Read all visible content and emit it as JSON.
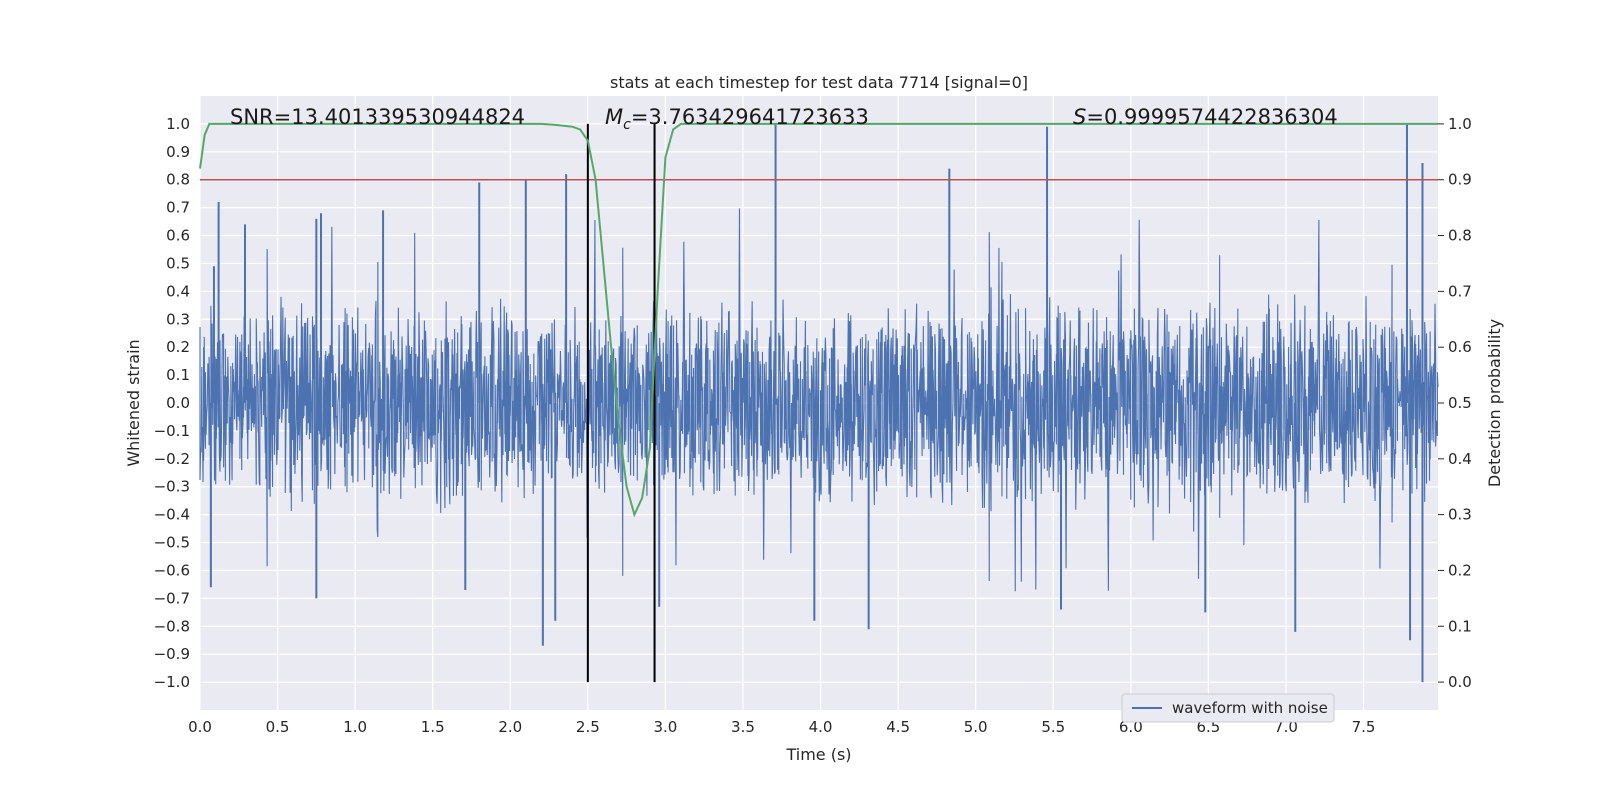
{
  "chart_data": {
    "type": "line",
    "title": "stats at each timestep for test data 7714 [signal=0]",
    "xlabel": "Time (s)",
    "ylabel_left": "Whitened strain",
    "ylabel_right": "Detection probability",
    "xlim": [
      0.0,
      7.98
    ],
    "ylim_left": [
      -1.1,
      1.1
    ],
    "ylim_right": [
      -0.05,
      1.05
    ],
    "x_ticks": [
      0.0,
      0.5,
      1.0,
      1.5,
      2.0,
      2.5,
      3.0,
      3.5,
      4.0,
      4.5,
      5.0,
      5.5,
      6.0,
      6.5,
      7.0,
      7.5
    ],
    "x_tick_labels": [
      "0.0",
      "0.5",
      "1.0",
      "1.5",
      "2.0",
      "2.5",
      "3.0",
      "3.5",
      "4.0",
      "4.5",
      "5.0",
      "5.5",
      "6.0",
      "6.5",
      "7.0",
      "7.5"
    ],
    "y_left_ticks": [
      1.0,
      0.9,
      0.8,
      0.7,
      0.6,
      0.5,
      0.4,
      0.3,
      0.2,
      0.1,
      0.0,
      -0.1,
      -0.2,
      -0.3,
      -0.4,
      -0.5,
      -0.6,
      -0.7,
      -0.8,
      -0.9,
      -1.0
    ],
    "y_left_tick_labels": [
      "1.0",
      "0.9",
      "0.8",
      "0.7",
      "0.6",
      "0.5",
      "0.4",
      "0.3",
      "0.2",
      "0.1",
      "0.0",
      "−0.1",
      "−0.2",
      "−0.3",
      "−0.4",
      "−0.5",
      "−0.6",
      "−0.7",
      "−0.8",
      "−0.9",
      "−1.0"
    ],
    "y_right_ticks": [
      1.0,
      0.9,
      0.8,
      0.7,
      0.6,
      0.5,
      0.4,
      0.3,
      0.2,
      0.1,
      0.0
    ],
    "y_right_tick_labels": [
      "1.0",
      "0.9",
      "0.8",
      "0.7",
      "0.6",
      "0.5",
      "0.4",
      "0.3",
      "0.2",
      "0.1",
      "0.0"
    ],
    "series": [
      {
        "name": "waveform with noise",
        "axis": "left",
        "color": "#4c72b0",
        "kind": "noisy-strain",
        "sample_count": 2048,
        "typical_envelope": 0.4,
        "peaks": [
          {
            "x": 0.09,
            "y": 0.49
          },
          {
            "x": 0.12,
            "y": 0.72
          },
          {
            "x": 0.29,
            "y": 0.64
          },
          {
            "x": 0.75,
            "y": 0.66
          },
          {
            "x": 0.78,
            "y": 0.68
          },
          {
            "x": 1.18,
            "y": 0.69
          },
          {
            "x": 1.8,
            "y": 0.79
          },
          {
            "x": 2.1,
            "y": 0.8
          },
          {
            "x": 2.36,
            "y": 0.82
          },
          {
            "x": 3.71,
            "y": 1.0
          },
          {
            "x": 4.83,
            "y": 0.84
          },
          {
            "x": 5.46,
            "y": 0.99
          },
          {
            "x": 7.78,
            "y": 1.0
          },
          {
            "x": 7.88,
            "y": 0.86
          }
        ],
        "troughs": [
          {
            "x": 0.07,
            "y": -0.66
          },
          {
            "x": 0.75,
            "y": -0.7
          },
          {
            "x": 1.71,
            "y": -0.67
          },
          {
            "x": 2.21,
            "y": -0.87
          },
          {
            "x": 2.29,
            "y": -0.78
          },
          {
            "x": 2.96,
            "y": -0.73
          },
          {
            "x": 3.96,
            "y": -0.78
          },
          {
            "x": 4.31,
            "y": -0.81
          },
          {
            "x": 5.55,
            "y": -0.74
          },
          {
            "x": 6.48,
            "y": -0.75
          },
          {
            "x": 7.06,
            "y": -0.82
          },
          {
            "x": 7.8,
            "y": -0.85
          },
          {
            "x": 7.88,
            "y": -1.0
          }
        ]
      },
      {
        "name": "detection probability",
        "axis": "right",
        "color": "#55a868",
        "x": [
          0.0,
          0.03,
          0.06,
          0.1,
          0.5,
          1.0,
          2.0,
          2.2,
          2.3,
          2.4,
          2.45,
          2.5,
          2.55,
          2.6,
          2.65,
          2.7,
          2.75,
          2.8,
          2.85,
          2.9,
          2.95,
          3.0,
          3.05,
          3.1,
          3.2,
          4.0,
          5.0,
          6.0,
          7.0,
          7.98
        ],
        "y": [
          0.92,
          0.98,
          1.0,
          1.0,
          1.0,
          1.0,
          1.0,
          1.0,
          0.998,
          0.995,
          0.99,
          0.97,
          0.9,
          0.75,
          0.6,
          0.46,
          0.35,
          0.3,
          0.33,
          0.42,
          0.7,
          0.94,
          0.99,
          1.0,
          1.0,
          1.0,
          1.0,
          1.0,
          1.0,
          1.0
        ]
      }
    ],
    "hlines": [
      {
        "axis": "right",
        "y": 0.9,
        "color": "#c44e52"
      }
    ],
    "vlines": [
      {
        "x": 2.5,
        "ymin": -1.0,
        "ymax": 1.0,
        "color": "#000000"
      },
      {
        "x": 2.93,
        "ymin": -1.0,
        "ymax": 1.0,
        "color": "#000000"
      }
    ],
    "annotations": [
      {
        "text": "SNR=13.401339530944824"
      },
      {
        "prefix": "M",
        "sub": "c",
        "rest": "=3.763429641723633"
      },
      {
        "prefix": "S",
        "rest": "=0.9999574422836304"
      }
    ],
    "legend": {
      "position": "lower-right",
      "entries": [
        "waveform with noise"
      ]
    },
    "grid": true
  }
}
